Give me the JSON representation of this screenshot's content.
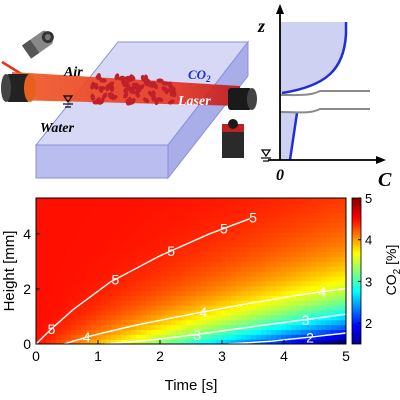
{
  "schematic": {
    "label_air": "Air",
    "label_co2": "CO",
    "label_co2_sub": "2",
    "label_laser": "Laser",
    "label_water": "Water"
  },
  "profile_inset": {
    "axis_z_label": "z",
    "axis_c_label": "C",
    "origin_label": "0"
  },
  "colors": {
    "laser_red": "#e8321e",
    "tank_fill": "#c9ccf2",
    "curve_blue": "#1f2fd6",
    "droplet_red": "#c0202a"
  },
  "chart_data": {
    "type": "heatmap",
    "title": "",
    "xlabel": "Time [s]",
    "ylabel": "Height [mm]",
    "xlim": [
      0,
      5
    ],
    "ylim": [
      0,
      5.3
    ],
    "xticks": [
      "0",
      "1",
      "2",
      "3",
      "4",
      "5"
    ],
    "yticks": [
      "0",
      "2",
      "4"
    ],
    "colorbar": {
      "label": "CO",
      "label_sub": "2",
      "label_unit": " [%]",
      "range": [
        1.5,
        5
      ],
      "ticks": [
        "2",
        "3",
        "4",
        "5"
      ],
      "colormap": "jet"
    },
    "contours": [
      {
        "level": 5,
        "label": "5",
        "points": [
          [
            0,
            0
          ],
          [
            0.25,
            0.55
          ],
          [
            0.6,
            1.25
          ],
          [
            1.2,
            2.25
          ],
          [
            2.0,
            3.2
          ],
          [
            2.8,
            4.0
          ],
          [
            3.45,
            4.55
          ]
        ]
      },
      {
        "level": 4,
        "label": "4",
        "points": [
          [
            0.45,
            0
          ],
          [
            0.9,
            0.3
          ],
          [
            1.6,
            0.68
          ],
          [
            2.5,
            1.08
          ],
          [
            3.5,
            1.5
          ],
          [
            4.3,
            1.8
          ],
          [
            5.0,
            2.02
          ]
        ]
      },
      {
        "level": 3,
        "label": "3",
        "points": [
          [
            1.1,
            0
          ],
          [
            1.8,
            0.13
          ],
          [
            2.6,
            0.35
          ],
          [
            3.5,
            0.63
          ],
          [
            4.3,
            0.87
          ],
          [
            5.0,
            1.08
          ]
        ]
      },
      {
        "level": 2,
        "label": "2",
        "points": [
          [
            3.1,
            0
          ],
          [
            3.8,
            0.1
          ],
          [
            4.5,
            0.27
          ],
          [
            5.0,
            0.4
          ]
        ]
      }
    ],
    "contour_labels": [
      {
        "level": "5",
        "at": [
          0.25,
          0.55
        ]
      },
      {
        "level": "5",
        "at": [
          1.28,
          2.35
        ]
      },
      {
        "level": "5",
        "at": [
          2.18,
          3.38
        ]
      },
      {
        "level": "5",
        "at": [
          3.03,
          4.2
        ]
      },
      {
        "level": "5",
        "at": [
          3.5,
          4.6
        ]
      },
      {
        "level": "4",
        "at": [
          0.82,
          0.26
        ]
      },
      {
        "level": "4",
        "at": [
          2.7,
          1.16
        ]
      },
      {
        "level": "4",
        "at": [
          4.62,
          1.9
        ]
      },
      {
        "level": "3",
        "at": [
          2.6,
          0.33
        ]
      },
      {
        "level": "3",
        "at": [
          4.35,
          0.88
        ]
      },
      {
        "level": "2",
        "at": [
          4.42,
          0.24
        ]
      }
    ]
  }
}
